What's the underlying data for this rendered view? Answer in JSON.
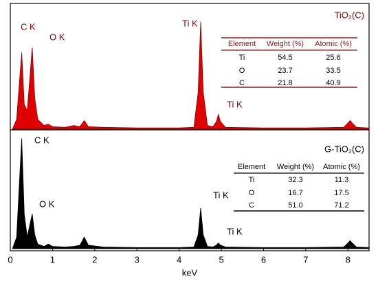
{
  "chart_data": [
    {
      "type": "area",
      "x": [
        0.05,
        0.15,
        0.22,
        0.27,
        0.33,
        0.4,
        0.47,
        0.52,
        0.58,
        0.65,
        0.8,
        0.9,
        1.0,
        1.3,
        1.5,
        1.65,
        1.75,
        1.85,
        2.2,
        3,
        4,
        4.35,
        4.45,
        4.51,
        4.57,
        4.67,
        4.8,
        4.88,
        4.93,
        4.98,
        5.1,
        6,
        7,
        7.9,
        8.0,
        8.05,
        8.1,
        8.2,
        8.5
      ],
      "series": [
        {
          "name": "TiO₂(C)",
          "color": "#e00000",
          "values": [
            0,
            8,
            40,
            62,
            20,
            15,
            45,
            66,
            25,
            8,
            3,
            4,
            2,
            1.5,
            3,
            2,
            7,
            2,
            1.5,
            1,
            1,
            1.5,
            30,
            87,
            30,
            3,
            2,
            6,
            12,
            6,
            1.5,
            1,
            1,
            1.5,
            5,
            7,
            5,
            1.5,
            1
          ]
        }
      ],
      "xlim": [
        0,
        8.5
      ],
      "ylim": [
        0,
        100
      ],
      "annotations": [
        "C K",
        "O K",
        "Ti K",
        "Ti K"
      ],
      "table": {
        "header": [
          "Element",
          "Weight (%)",
          "Atomic (%)"
        ],
        "rows": [
          [
            "Ti",
            "54.5",
            "25.6"
          ],
          [
            "O",
            "23.7",
            "33.5"
          ],
          [
            "C",
            "21.8",
            "40.9"
          ]
        ]
      }
    },
    {
      "type": "area",
      "x": [
        0.05,
        0.15,
        0.22,
        0.27,
        0.33,
        0.4,
        0.47,
        0.52,
        0.58,
        0.65,
        0.8,
        0.9,
        1.0,
        1.3,
        1.5,
        1.65,
        1.75,
        1.85,
        2.2,
        3,
        4,
        4.35,
        4.45,
        4.51,
        4.57,
        4.67,
        4.8,
        4.88,
        4.93,
        4.98,
        5.1,
        6,
        7,
        7.9,
        8.0,
        8.05,
        8.1,
        8.2,
        8.5
      ],
      "series": [
        {
          "name": "G-TiO₂(C)",
          "color": "#000000",
          "values": [
            0,
            10,
            60,
            95,
            30,
            10,
            22,
            30,
            12,
            4,
            2,
            4,
            2,
            1.5,
            2,
            3,
            10,
            3,
            1.5,
            1,
            1,
            1.5,
            12,
            35,
            12,
            2,
            1.5,
            3,
            5,
            3,
            1.5,
            1,
            1,
            1.5,
            5,
            7,
            5,
            1.5,
            1
          ]
        }
      ],
      "xlim": [
        0,
        8.5
      ],
      "ylim": [
        0,
        100
      ],
      "xticks": [
        0,
        1,
        2,
        3,
        4,
        5,
        6,
        7,
        8
      ],
      "xlabel": "keV",
      "annotations": [
        "C K",
        "O K",
        "Ti K",
        "Ti K"
      ],
      "table": {
        "header": [
          "Element",
          "Weight (%)",
          "Atomic (%)"
        ],
        "rows": [
          [
            "Ti",
            "32.3",
            "11.3"
          ],
          [
            "O",
            "16.7",
            "17.5"
          ],
          [
            "C",
            "51.0",
            "71.2"
          ]
        ]
      }
    }
  ]
}
